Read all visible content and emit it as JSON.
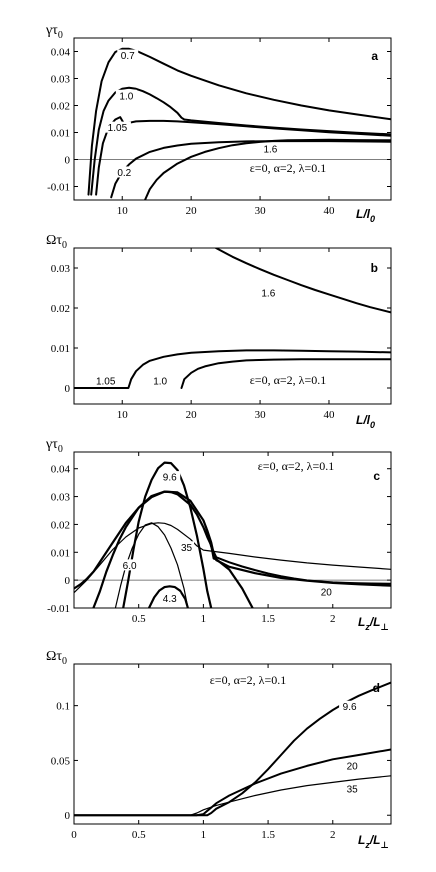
{
  "chart_data": [
    {
      "id": "a",
      "type": "line",
      "panel_label": "a",
      "annotation": "ε=0, α=2, λ=0.1",
      "ylabel": "γτ",
      "ylabel_sub": "0",
      "xlabel": "L/l",
      "xlabel_sub": "0",
      "xlim": [
        3,
        49
      ],
      "ylim": [
        -0.015,
        0.045
      ],
      "xticks": [
        10,
        20,
        30,
        40
      ],
      "yticks": [
        -0.01,
        0,
        0.01,
        0.02,
        0.03,
        0.04
      ],
      "ytick_labels": [
        "-0.01",
        "0",
        "0.01",
        "0.02",
        "0.03",
        "0.04"
      ],
      "zero_line": true,
      "series": [
        {
          "name": "0.7",
          "label_at": [
            10.8,
            0.0385
          ],
          "width": 2,
          "x": [
            5.1,
            5.6,
            6.2,
            7,
            8,
            9,
            10,
            11,
            12,
            14,
            16,
            18,
            20,
            24,
            28,
            32,
            36,
            40,
            44,
            49
          ],
          "y": [
            -0.013,
            0.005,
            0.018,
            0.029,
            0.036,
            0.0398,
            0.041,
            0.041,
            0.0403,
            0.038,
            0.0355,
            0.033,
            0.031,
            0.0275,
            0.0245,
            0.0221,
            0.02,
            0.0182,
            0.0167,
            0.0149
          ]
        },
        {
          "name": "1.0",
          "label_at": [
            10.6,
            0.0236
          ],
          "width": 2,
          "x": [
            5.5,
            6,
            6.6,
            7.3,
            8,
            9,
            10,
            11,
            12,
            13,
            14,
            15,
            16,
            17,
            18,
            18.6,
            19,
            20,
            24,
            28,
            32,
            36,
            40,
            44,
            49
          ],
          "y": [
            -0.013,
            0.0,
            0.011,
            0.018,
            0.0218,
            0.0248,
            0.0262,
            0.0266,
            0.0262,
            0.0253,
            0.0241,
            0.0227,
            0.0212,
            0.0194,
            0.0173,
            0.0155,
            0.0148,
            0.0145,
            0.0135,
            0.0126,
            0.0118,
            0.0111,
            0.0105,
            0.0099,
            0.0093
          ]
        },
        {
          "name": "1.05",
          "label_at": [
            9.3,
            0.0118
          ],
          "width": 2,
          "x": [
            6.2,
            6.6,
            7.2,
            8,
            9,
            9.7,
            10.2,
            10.6,
            11,
            12,
            14,
            16,
            18,
            20,
            24,
            28,
            32,
            36,
            40,
            44,
            49
          ],
          "y": [
            -0.013,
            -0.003,
            0.006,
            0.0118,
            0.0148,
            0.0157,
            0.0135,
            0.0132,
            0.0136,
            0.0141,
            0.0143,
            0.0143,
            0.0141,
            0.0138,
            0.0131,
            0.0123,
            0.0115,
            0.0108,
            0.0101,
            0.0095,
            0.0088
          ]
        },
        {
          "name": "0.2",
          "label_at": [
            10.3,
            -0.0048
          ],
          "width": 2,
          "x": [
            8.4,
            9,
            10,
            11,
            12,
            14,
            16,
            18,
            20,
            24,
            28,
            32,
            36,
            40,
            44,
            49
          ],
          "y": [
            -0.014,
            -0.009,
            -0.0045,
            -0.0018,
            0.0003,
            0.0028,
            0.0043,
            0.0052,
            0.0058,
            0.0064,
            0.0067,
            0.0068,
            0.0068,
            0.0068,
            0.0067,
            0.0066
          ]
        },
        {
          "name": "1.6",
          "label_at": [
            31.5,
            0.0039
          ],
          "width": 2,
          "x": [
            13.3,
            14,
            15,
            16,
            18,
            20,
            22,
            24,
            26,
            28,
            30,
            32,
            34,
            36,
            40,
            44,
            49
          ],
          "y": [
            -0.015,
            -0.011,
            -0.0075,
            -0.005,
            -0.0015,
            0.001,
            0.0028,
            0.0042,
            0.0053,
            0.006,
            0.0065,
            0.0069,
            0.0071,
            0.0072,
            0.0073,
            0.0072,
            0.0071
          ]
        }
      ]
    },
    {
      "id": "b",
      "type": "line",
      "panel_label": "b",
      "annotation": "ε=0, α=2, λ=0.1",
      "ylabel": "Ωτ",
      "ylabel_sub": "0",
      "xlabel": "L/l",
      "xlabel_sub": "0",
      "xlim": [
        3,
        49
      ],
      "ylim": [
        -0.004,
        0.035
      ],
      "xticks": [
        10,
        20,
        30,
        40
      ],
      "yticks": [
        0,
        0.01,
        0.02,
        0.03
      ],
      "ytick_labels": [
        "0",
        "0.01",
        "0.02",
        "0.03"
      ],
      "zero_line": false,
      "series": [
        {
          "name": "1.6",
          "label_at": [
            31.2,
            0.0237
          ],
          "width": 2,
          "x": [
            23.6,
            26,
            28,
            30,
            32,
            34,
            36,
            38,
            40,
            42,
            44,
            46,
            49
          ],
          "y": [
            0.035,
            0.0328,
            0.0312,
            0.0297,
            0.0283,
            0.027,
            0.0257,
            0.0245,
            0.0234,
            0.0223,
            0.0212,
            0.0202,
            0.0189
          ]
        },
        {
          "name": "1.05",
          "label_at": [
            7.6,
            0.0017
          ],
          "width": 2,
          "x": [
            3,
            6,
            8,
            10,
            10.9,
            11.3,
            12,
            13,
            14,
            16,
            18,
            20,
            24,
            28,
            32,
            36,
            40,
            44,
            49
          ],
          "y": [
            0,
            0,
            0,
            0,
            0,
            0.0022,
            0.0042,
            0.0058,
            0.0068,
            0.0078,
            0.0084,
            0.0088,
            0.0092,
            0.0094,
            0.0094,
            0.0093,
            0.0092,
            0.0091,
            0.0089
          ]
        },
        {
          "name": "1.0",
          "label_at": [
            15.5,
            0.0017
          ],
          "width": 2,
          "x": [
            18.6,
            19,
            20,
            21,
            22,
            24,
            26,
            28,
            32,
            36,
            40,
            44,
            49
          ],
          "y": [
            0,
            0.0022,
            0.0038,
            0.0048,
            0.0054,
            0.0062,
            0.0066,
            0.0069,
            0.0071,
            0.0072,
            0.0072,
            0.0072,
            0.0072
          ]
        }
      ]
    },
    {
      "id": "c",
      "type": "line",
      "panel_label": "c",
      "annotation": "ε=0, α=2, λ=0.1",
      "ylabel": "γτ",
      "ylabel_sub": "0",
      "xlabel": "L",
      "xlabel_sub": "z",
      "xlabel2": "/L",
      "xlabel2_sub": "⊥",
      "xlim": [
        0,
        2.45
      ],
      "ylim": [
        -0.01,
        0.046
      ],
      "xticks": [
        0.5,
        1,
        1.5,
        2
      ],
      "xtick_labels": [
        "0.5",
        "1",
        "1.5",
        "2"
      ],
      "yticks": [
        -0.01,
        0,
        0.01,
        0.02,
        0.03,
        0.04
      ],
      "ytick_labels": [
        "-0.01",
        "0",
        "0.01",
        "0.02",
        "0.03",
        "0.04"
      ],
      "zero_line": true,
      "series": [
        {
          "name": "9.6",
          "label_at": [
            0.74,
            0.037
          ],
          "width": 2.2,
          "x": [
            0.38,
            0.42,
            0.46,
            0.5,
            0.55,
            0.6,
            0.65,
            0.7,
            0.75,
            0.8,
            0.85,
            0.9,
            0.95,
            1.0,
            1.03,
            1.06
          ],
          "y": [
            -0.01,
            0.0,
            0.011,
            0.021,
            0.03,
            0.036,
            0.0402,
            0.0422,
            0.042,
            0.0395,
            0.034,
            0.026,
            0.016,
            0.004,
            -0.004,
            -0.01
          ]
        },
        {
          "name": "",
          "width": 2.2,
          "x": [
            0.15,
            0.2,
            0.25,
            0.3,
            0.35,
            0.4,
            0.5,
            0.6,
            0.7,
            0.75,
            0.8,
            0.9,
            0.95,
            1.0,
            1.03,
            1.06,
            1.08,
            1.1,
            1.2,
            1.3,
            1.38
          ],
          "y": [
            -0.01,
            -0.004,
            0.003,
            0.009,
            0.0145,
            0.019,
            0.026,
            0.0302,
            0.0318,
            0.0316,
            0.0308,
            0.027,
            0.0236,
            0.019,
            0.0155,
            0.0125,
            0.0078,
            0.0075,
            0.0038,
            -0.003,
            -0.01
          ]
        },
        {
          "name": "",
          "width": 2.2,
          "x": [
            0,
            0.05,
            0.1,
            0.15,
            0.2,
            0.3,
            0.4,
            0.5,
            0.6,
            0.7,
            0.8,
            0.9,
            1.0,
            1.03,
            1.06,
            1.08,
            1.1,
            1.2,
            1.4,
            1.6,
            1.8,
            2.0,
            2.2,
            2.45
          ],
          "y": [
            -0.003,
            -0.0015,
            0.0005,
            0.003,
            0.0065,
            0.0135,
            0.0205,
            0.026,
            0.0298,
            0.0318,
            0.0315,
            0.0285,
            0.0215,
            0.0178,
            0.0135,
            0.0095,
            0.0072,
            0.0048,
            0.0025,
            0.0008,
            -0.0002,
            -0.001,
            -0.0015,
            -0.002
          ]
        },
        {
          "name": "35",
          "label_at": [
            0.87,
            0.0118
          ],
          "width": 1.2,
          "x": [
            0,
            0.1,
            0.2,
            0.3,
            0.4,
            0.5,
            0.6,
            0.65,
            0.7,
            0.75,
            0.8,
            0.9,
            0.95,
            1.0,
            1.2,
            1.4,
            1.6,
            1.8,
            2.0,
            2.2,
            2.45
          ],
          "y": [
            -0.0045,
            0.0,
            0.0055,
            0.011,
            0.0155,
            0.0187,
            0.0203,
            0.0206,
            0.0204,
            0.0196,
            0.0182,
            0.0147,
            0.0123,
            0.0108,
            0.0096,
            0.0083,
            0.0072,
            0.0062,
            0.0054,
            0.0047,
            0.0039
          ]
        },
        {
          "name": "6.0",
          "label_at": [
            0.43,
            0.0053
          ],
          "width": 1.2,
          "x": [
            0.32,
            0.36,
            0.4,
            0.45,
            0.5,
            0.55,
            0.6,
            0.65,
            0.7,
            0.75,
            0.8,
            0.85,
            0.88
          ],
          "y": [
            -0.01,
            -0.002,
            0.005,
            0.0115,
            0.0165,
            0.0198,
            0.0206,
            0.0192,
            0.0162,
            0.0115,
            0.0055,
            -0.003,
            -0.01
          ]
        },
        {
          "name": "4.3",
          "label_at": [
            0.74,
            -0.0065
          ],
          "width": 2.2,
          "x": [
            0.58,
            0.62,
            0.66,
            0.7,
            0.74,
            0.78,
            0.82,
            0.86,
            0.88
          ],
          "y": [
            -0.01,
            -0.0062,
            -0.0037,
            -0.0025,
            -0.0022,
            -0.0025,
            -0.0038,
            -0.0068,
            -0.01
          ]
        },
        {
          "name": "20",
          "label_at": [
            1.95,
            -0.0042
          ],
          "width": 2,
          "x": [
            1.02,
            1.06,
            1.1,
            1.2,
            1.3,
            1.4,
            1.5,
            1.6,
            1.7,
            1.8,
            1.9,
            2.0,
            2.1,
            2.2,
            2.3,
            2.45
          ],
          "y": [
            0.019,
            0.012,
            0.0082,
            0.0064,
            0.0049,
            0.0036,
            0.0024,
            0.0014,
            0.0006,
            -0.0001,
            -0.0005,
            -0.0008,
            -0.001,
            -0.0011,
            -0.0012,
            -0.0013
          ]
        }
      ]
    },
    {
      "id": "d",
      "type": "line",
      "panel_label": "d",
      "annotation": "ε=0, α=2, λ=0.1",
      "ylabel": "Ωτ",
      "ylabel_sub": "0",
      "xlabel": "L",
      "xlabel_sub": "z",
      "xlabel2": "/L",
      "xlabel2_sub": "⊥",
      "xlim": [
        0,
        2.45
      ],
      "ylim": [
        -0.008,
        0.138
      ],
      "xticks": [
        0,
        0.5,
        1,
        1.5,
        2
      ],
      "xtick_labels": [
        "0",
        "0.5",
        "1",
        "1.5",
        "2"
      ],
      "yticks": [
        0,
        0.05,
        0.1
      ],
      "ytick_labels": [
        "0",
        "0.05",
        "0.1"
      ],
      "zero_line": false,
      "series": [
        {
          "name": "9.6",
          "label_at": [
            2.13,
            0.099
          ],
          "width": 2,
          "x": [
            0,
            0.5,
            1.0,
            1.03,
            1.06,
            1.1,
            1.2,
            1.3,
            1.4,
            1.5,
            1.6,
            1.7,
            1.8,
            1.9,
            2.0,
            2.1,
            2.2,
            2.3,
            2.45
          ],
          "y": [
            0,
            0,
            0,
            0,
            0.002,
            0.006,
            0.012,
            0.02,
            0.03,
            0.042,
            0.055,
            0.068,
            0.079,
            0.088,
            0.096,
            0.103,
            0.109,
            0.114,
            0.121
          ]
        },
        {
          "name": "20",
          "label_at": [
            2.15,
            0.045
          ],
          "width": 2,
          "x": [
            0,
            0.5,
            0.95,
            1.0,
            1.03,
            1.06,
            1.1,
            1.2,
            1.4,
            1.6,
            1.8,
            2.0,
            2.2,
            2.45
          ],
          "y": [
            0,
            0,
            0,
            0.001,
            0.004,
            0.007,
            0.011,
            0.018,
            0.029,
            0.038,
            0.045,
            0.051,
            0.055,
            0.06
          ]
        },
        {
          "name": "35",
          "label_at": [
            2.15,
            0.024
          ],
          "width": 1.2,
          "x": [
            0,
            0.5,
            0.9,
            0.95,
            1.0,
            1.05,
            1.1,
            1.2,
            1.4,
            1.6,
            1.8,
            2.0,
            2.2,
            2.45
          ],
          "y": [
            0,
            0,
            0,
            0.002,
            0.005,
            0.007,
            0.009,
            0.012,
            0.018,
            0.023,
            0.027,
            0.03,
            0.033,
            0.036
          ]
        }
      ]
    }
  ]
}
